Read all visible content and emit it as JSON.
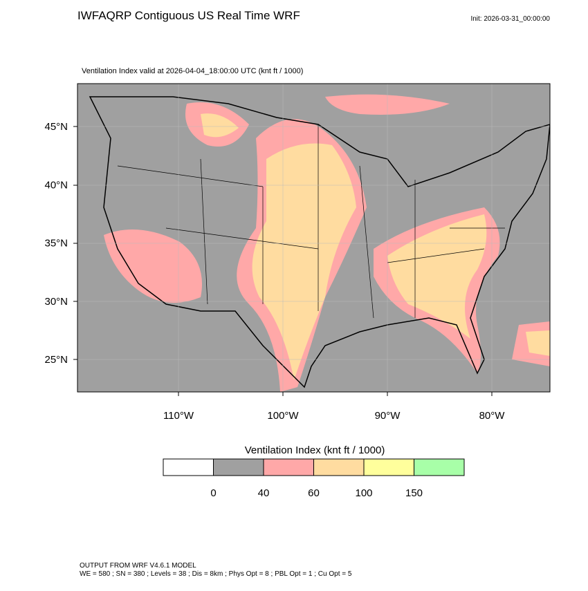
{
  "header": {
    "title": "IWFAQRP Contiguous US Real Time WRF",
    "init": "Init: 2026-03-31_00:00:00",
    "subtitle": "Ventilation Index valid at 2026-04-04_18:00:00 UTC   (knt ft / 1000)"
  },
  "map": {
    "lat_labels": [
      "45°N",
      "40°N",
      "35°N",
      "30°N",
      "25°N"
    ],
    "lon_labels": [
      "110°W",
      "100°W",
      "90°W",
      "80°W"
    ]
  },
  "colorbar": {
    "title": "Ventilation Index  (knt ft / 1000)",
    "colors": [
      "#ffffff",
      "#a0a0a0",
      "#ffa8a8",
      "#ffdca0",
      "#ffff9c",
      "#a8ffa8"
    ],
    "levels": [
      0,
      40,
      60,
      100,
      150
    ]
  },
  "footer": {
    "lines": [
      "OUTPUT FROM WRF V4.6.1 MODEL",
      "WE = 580 ; SN = 380 ; Levels = 38 ; Dis = 8km ; Phys Opt = 8 ; PBL Opt = 1 ; Cu Opt = 5"
    ]
  }
}
